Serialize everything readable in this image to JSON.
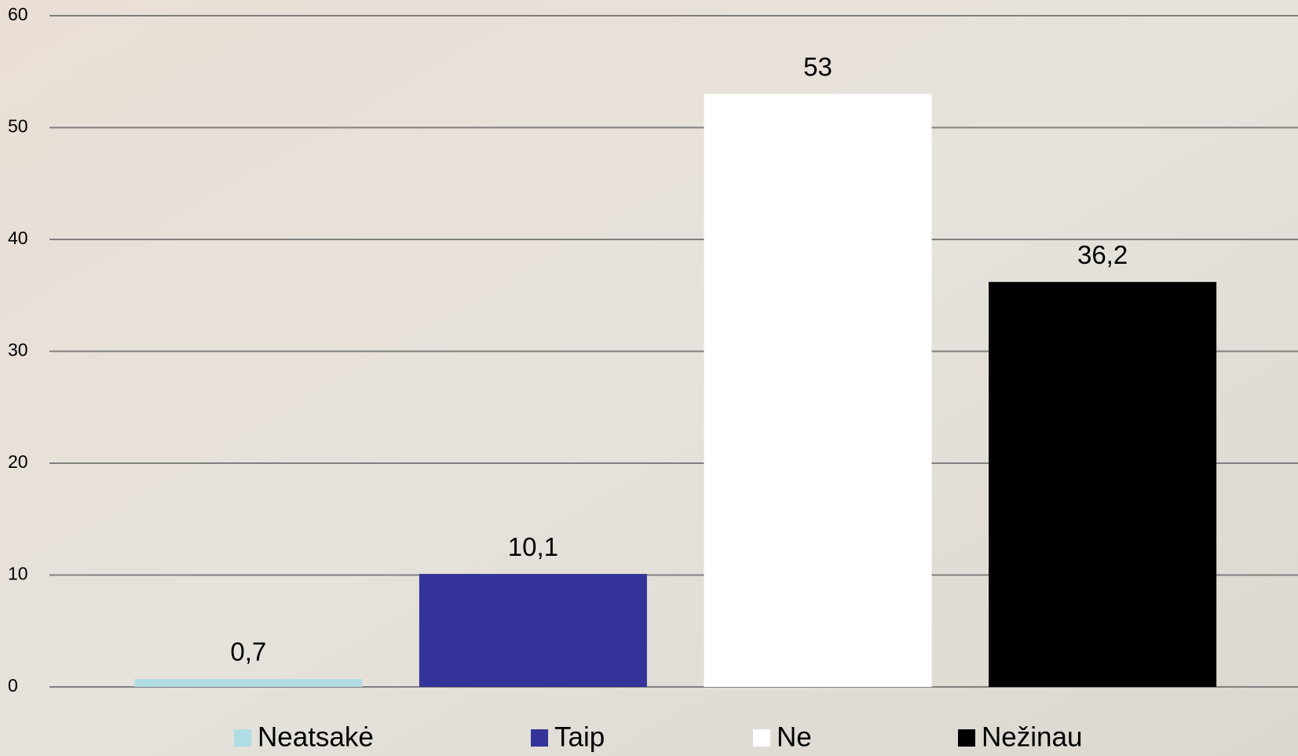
{
  "chart_data": {
    "type": "bar",
    "categories": [
      "Neatsakė",
      "Taip",
      "Ne",
      "Nežinau"
    ],
    "values": [
      0.7,
      10.1,
      53,
      36.2
    ],
    "value_labels": [
      "0,7",
      "10,1",
      "53",
      "36,2"
    ],
    "colors": [
      "#b0dde4",
      "#333399",
      "#ffffff",
      "#000000"
    ],
    "ylim": [
      0,
      60
    ],
    "yticks": [
      0,
      10,
      20,
      30,
      40,
      50,
      60
    ],
    "grid": true,
    "legend": "bottom"
  }
}
